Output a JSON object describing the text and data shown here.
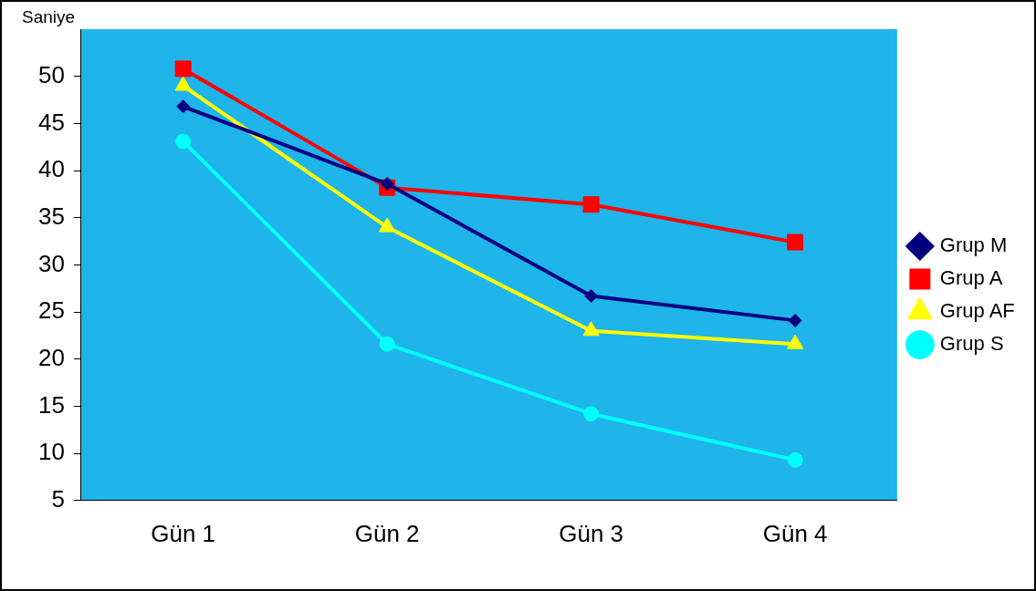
{
  "chart_data": {
    "type": "line",
    "ylabel": "Saniye",
    "categories": [
      "Gün 1",
      "Gün 2",
      "Gün 3",
      "Gün 4"
    ],
    "series": [
      {
        "name": "Grup M",
        "color": "#000080",
        "marker": "diamond",
        "values": [
          46.8,
          38.6,
          26.7,
          24.1
        ]
      },
      {
        "name": "Grup A",
        "color": "#ff0000",
        "marker": "square",
        "values": [
          50.8,
          38.2,
          36.4,
          32.4
        ]
      },
      {
        "name": "Grup AF",
        "color": "#ffff00",
        "marker": "triangle",
        "values": [
          49.0,
          34.0,
          23.0,
          21.6
        ]
      },
      {
        "name": "Grup S",
        "color": "#00ffff",
        "marker": "circle",
        "values": [
          43.1,
          21.6,
          14.2,
          9.3
        ]
      }
    ],
    "ylim": [
      5,
      55
    ],
    "yticks": [
      5,
      10,
      15,
      20,
      25,
      30,
      35,
      40,
      45,
      50
    ],
    "grid": false,
    "legend": "right",
    "line_style": "solid"
  }
}
